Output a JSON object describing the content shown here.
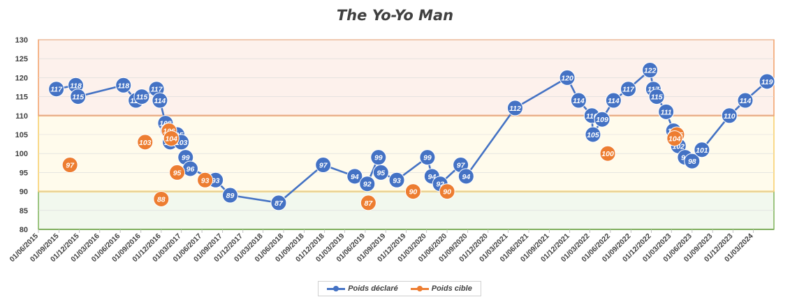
{
  "chart_data": {
    "type": "line",
    "title": "The Yo-Yo Man",
    "ylim": [
      80,
      130
    ],
    "yticks": [
      "80",
      "85",
      "90",
      "95",
      "100",
      "105",
      "110",
      "115",
      "120",
      "125",
      "130"
    ],
    "xticks": [
      "01/06/2015",
      "01/09/2015",
      "01/12/2015",
      "01/03/2016",
      "01/06/2016",
      "01/09/2016",
      "01/12/2016",
      "01/03/2017",
      "01/06/2017",
      "01/09/2017",
      "01/12/2017",
      "01/03/2018",
      "01/06/2018",
      "01/09/2018",
      "01/12/2018",
      "01/03/2019",
      "01/06/2019",
      "01/09/2019",
      "01/12/2019",
      "01/03/2020",
      "01/06/2020",
      "01/09/2020",
      "01/12/2020",
      "01/03/2021",
      "01/06/2021",
      "01/09/2021",
      "01/12/2021",
      "01/03/2022",
      "01/06/2022",
      "01/09/2022",
      "01/12/2022",
      "01/03/2023",
      "01/06/2023",
      "01/09/2023",
      "01/12/2023",
      "01/03/2024"
    ],
    "bands": [
      {
        "from": 80,
        "to": 90,
        "fill": "#f2f8ee",
        "stroke": "#5fa032"
      },
      {
        "from": 90,
        "to": 110,
        "fill": "#fffbec",
        "stroke": "#f5c242"
      },
      {
        "from": 110,
        "to": 130,
        "fill": "#fdf1ec",
        "stroke": "#ee8844"
      }
    ],
    "series": [
      {
        "name": "Poids déclaré",
        "color": "#4472c4",
        "points": [
          {
            "x": "2015-08-20",
            "y": 117
          },
          {
            "x": "2015-11-15",
            "y": 118
          },
          {
            "x": "2015-11-25",
            "y": 115
          },
          {
            "x": "2016-06-15",
            "y": 118
          },
          {
            "x": "2016-08-10",
            "y": 114
          },
          {
            "x": "2016-09-05",
            "y": 115
          },
          {
            "x": "2016-11-10",
            "y": 117
          },
          {
            "x": "2016-11-25",
            "y": 114
          },
          {
            "x": "2016-12-20",
            "y": 108
          },
          {
            "x": "2017-01-01",
            "y": 106
          },
          {
            "x": "2017-01-10",
            "y": 103
          },
          {
            "x": "2017-02-10",
            "y": 105
          },
          {
            "x": "2017-03-01",
            "y": 103
          },
          {
            "x": "2017-03-20",
            "y": 99
          },
          {
            "x": "2017-04-10",
            "y": 96
          },
          {
            "x": "2017-08-01",
            "y": 93
          },
          {
            "x": "2017-10-05",
            "y": 89
          },
          {
            "x": "2018-05-10",
            "y": 87
          },
          {
            "x": "2018-11-25",
            "y": 97
          },
          {
            "x": "2019-04-15",
            "y": 94
          },
          {
            "x": "2019-06-10",
            "y": 92
          },
          {
            "x": "2019-07-30",
            "y": 99
          },
          {
            "x": "2019-08-10",
            "y": 95
          },
          {
            "x": "2019-10-20",
            "y": 93
          },
          {
            "x": "2020-03-05",
            "y": 99
          },
          {
            "x": "2020-03-25",
            "y": 94
          },
          {
            "x": "2020-05-01",
            "y": 92
          },
          {
            "x": "2020-08-01",
            "y": 97
          },
          {
            "x": "2020-08-25",
            "y": 94
          },
          {
            "x": "2021-04-01",
            "y": 112
          },
          {
            "x": "2021-11-20",
            "y": 120
          },
          {
            "x": "2022-01-10",
            "y": 114
          },
          {
            "x": "2022-03-10",
            "y": 110
          },
          {
            "x": "2022-03-15",
            "y": 105
          },
          {
            "x": "2022-04-25",
            "y": 109
          },
          {
            "x": "2022-06-15",
            "y": 114
          },
          {
            "x": "2022-08-20",
            "y": 117
          },
          {
            "x": "2022-11-25",
            "y": 122
          },
          {
            "x": "2022-12-10",
            "y": 117
          },
          {
            "x": "2022-12-25",
            "y": 115
          },
          {
            "x": "2023-02-05",
            "y": 111
          },
          {
            "x": "2023-03-10",
            "y": 106
          },
          {
            "x": "2023-04-01",
            "y": 102
          },
          {
            "x": "2023-05-01",
            "y": 99
          },
          {
            "x": "2023-06-01",
            "y": 98
          },
          {
            "x": "2023-07-15",
            "y": 101
          },
          {
            "x": "2023-11-15",
            "y": 110
          },
          {
            "x": "2024-01-25",
            "y": 114
          },
          {
            "x": "2024-05-01",
            "y": 119
          }
        ]
      },
      {
        "name": "Poids cible",
        "color": "#ed7d31",
        "points": [
          {
            "x": "2015-10-20",
            "y": 97
          },
          {
            "x": "2016-09-20",
            "y": 103
          },
          {
            "x": "2016-12-01",
            "y": 88
          },
          {
            "x": "2017-01-05",
            "y": 106
          },
          {
            "x": "2017-01-15",
            "y": 104
          },
          {
            "x": "2017-02-10",
            "y": 95
          },
          {
            "x": "2017-06-15",
            "y": 93
          },
          {
            "x": "2019-06-15",
            "y": 87
          },
          {
            "x": "2020-01-01",
            "y": 90
          },
          {
            "x": "2020-06-01",
            "y": 90
          },
          {
            "x": "2022-05-20",
            "y": 100
          },
          {
            "x": "2023-03-25",
            "y": 105
          },
          {
            "x": "2023-03-15",
            "y": 104
          }
        ]
      }
    ],
    "legend": "bottom"
  }
}
